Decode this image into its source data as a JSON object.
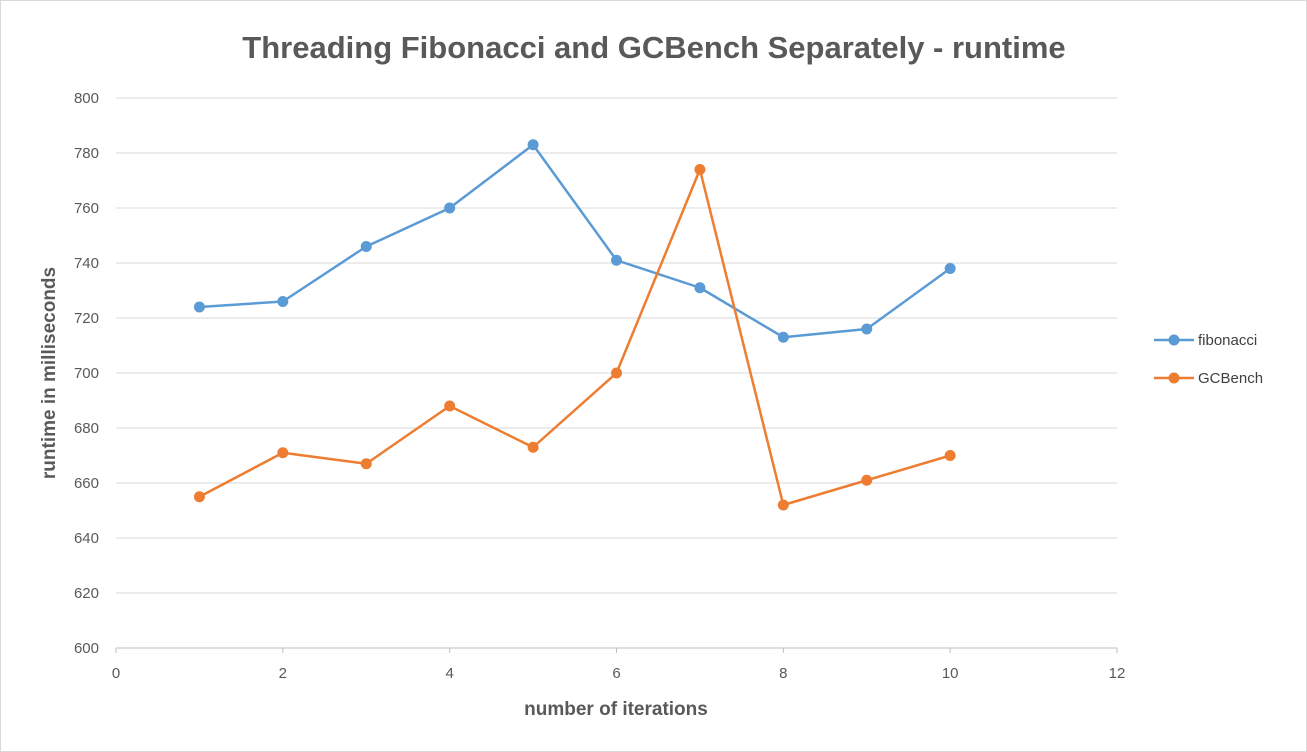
{
  "chart_data": {
    "type": "scatter",
    "title": "Threading Fibonacci and GCBench Separately - runtime",
    "xlabel": "number of iterations",
    "ylabel": "runtime in milliseconds",
    "xlim": [
      0,
      12
    ],
    "ylim": [
      600,
      800
    ],
    "xticks": [
      0,
      2,
      4,
      6,
      8,
      10,
      12
    ],
    "yticks": [
      600,
      620,
      640,
      660,
      680,
      700,
      720,
      740,
      760,
      780,
      800
    ],
    "grid": true,
    "legend_position": "right",
    "series": [
      {
        "name": "fibonacci",
        "color": "#5b9bd5",
        "x": [
          1,
          2,
          3,
          4,
          5,
          6,
          7,
          8,
          9,
          10
        ],
        "y": [
          724,
          726,
          746,
          760,
          783,
          741,
          731,
          713,
          716,
          738
        ]
      },
      {
        "name": "GCBench",
        "color": "#ed7d31",
        "x": [
          1,
          2,
          3,
          4,
          5,
          6,
          7,
          8,
          9,
          10
        ],
        "y": [
          655,
          671,
          667,
          688,
          673,
          700,
          774,
          652,
          661,
          670
        ]
      }
    ]
  }
}
